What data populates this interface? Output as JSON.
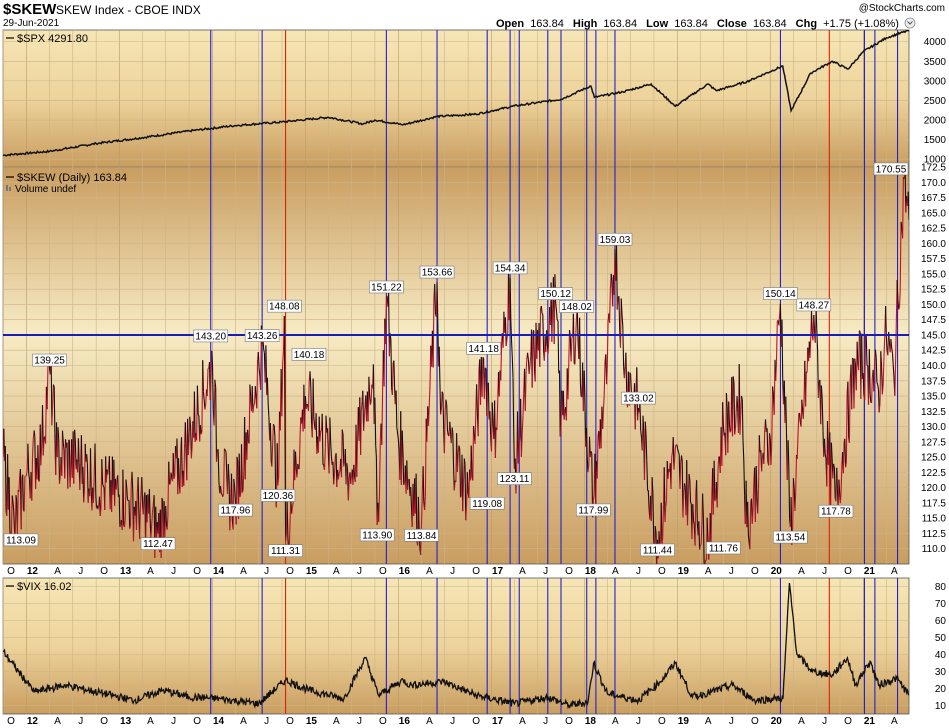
{
  "header": {
    "symbol": "$SKEW",
    "description": "SKEW Index - CBOE INDX",
    "date": "29-Jun-2021",
    "watermark": "@StockCharts.com",
    "open_label": "Open",
    "open": "163.84",
    "high_label": "High",
    "high": "163.84",
    "low_label": "Low",
    "low": "163.84",
    "close_label": "Close",
    "close": "163.84",
    "chg_label": "Chg",
    "chg": "+1.75 (+1.08%)"
  },
  "colors": {
    "panel_top": "#f6e6b6",
    "panel_bottom": "#c99d60",
    "skew_up": "#111111",
    "skew_down": "#c0112b",
    "marker_blue": "#2222cc",
    "marker_red": "#dd2200",
    "hline": "#1b1bb8"
  },
  "chart_data": [
    {
      "type": "line",
      "panel": "top",
      "legend": "$SPX 4291.80",
      "ylim": [
        800,
        4300
      ],
      "yticks": [
        1000,
        1500,
        2000,
        2500,
        3000,
        3500,
        4000
      ],
      "x_range": [
        "2011-10-01",
        "2021-06-29"
      ],
      "x": [
        "2011-10-01",
        "2012-04-01",
        "2012-10-01",
        "2013-04-01",
        "2013-10-01",
        "2014-04-01",
        "2014-10-01",
        "2015-04-01",
        "2015-08-15",
        "2015-10-01",
        "2016-01-20",
        "2016-06-01",
        "2016-11-01",
        "2017-04-01",
        "2017-10-01",
        "2018-01-26",
        "2018-02-09",
        "2018-06-01",
        "2018-09-20",
        "2018-12-24",
        "2019-05-01",
        "2019-06-03",
        "2019-10-01",
        "2020-02-19",
        "2020-03-23",
        "2020-06-08",
        "2020-09-01",
        "2020-11-01",
        "2021-01-01",
        "2021-04-01",
        "2021-06-29"
      ],
      "values": [
        1100,
        1200,
        1400,
        1550,
        1720,
        1860,
        1950,
        2070,
        1900,
        2000,
        1880,
        2090,
        2150,
        2360,
        2530,
        2870,
        2580,
        2720,
        2920,
        2350,
        2920,
        2750,
        2980,
        3380,
        2240,
        3200,
        3500,
        3300,
        3750,
        4100,
        4291.8
      ]
    },
    {
      "type": "line",
      "panel": "middle",
      "legend": "$SKEW (Daily) 163.84",
      "sublegend": "Volume undef",
      "ylim": [
        107.5,
        172.5
      ],
      "yticks": [
        110.0,
        112.5,
        115.0,
        117.5,
        120.0,
        122.5,
        125.0,
        127.5,
        130.0,
        132.5,
        135.0,
        137.5,
        140.0,
        142.5,
        145.0,
        147.5,
        150.0,
        152.5,
        155.0,
        157.5,
        160.0,
        162.5,
        165.0,
        167.5,
        170.0,
        172.5
      ],
      "hline": 145.0,
      "x": [
        "2011-10-01",
        "2011-11-15",
        "2012-01-01",
        "2012-03-01",
        "2012-04-01",
        "2012-05-01",
        "2012-08-01",
        "2012-11-01",
        "2013-02-01",
        "2013-05-01",
        "2013-06-01",
        "2013-07-01",
        "2013-10-01",
        "2014-01-01",
        "2014-01-20",
        "2014-03-01",
        "2014-04-01",
        "2014-07-15",
        "2014-09-15",
        "2014-10-10",
        "2014-10-15",
        "2015-01-01",
        "2015-04-01",
        "2015-07-01",
        "2015-09-25",
        "2015-10-10",
        "2015-11-15",
        "2016-01-01",
        "2016-04-01",
        "2016-06-01",
        "2016-06-15",
        "2016-10-01",
        "2016-12-01",
        "2017-01-10",
        "2017-03-15",
        "2017-04-01",
        "2017-06-01",
        "2017-09-10",
        "2017-10-01",
        "2017-12-01",
        "2018-02-05",
        "2018-04-01",
        "2018-05-01",
        "2018-06-10",
        "2018-08-01",
        "2018-10-15",
        "2018-12-10",
        "2019-02-01",
        "2019-05-01",
        "2019-07-01",
        "2019-09-10",
        "2019-10-01",
        "2019-12-01",
        "2020-01-01",
        "2020-02-10",
        "2020-03-20",
        "2020-05-01",
        "2020-06-20",
        "2020-08-01",
        "2020-09-15",
        "2020-10-20",
        "2020-12-01",
        "2021-01-15",
        "2021-03-01",
        "2021-04-01",
        "2021-05-01",
        "2021-06-10",
        "2021-06-29"
      ],
      "values": [
        125,
        113.09,
        122,
        127,
        139.25,
        125,
        124,
        120,
        118,
        115,
        112.47,
        117,
        128,
        140.2,
        126,
        119,
        117.96,
        143.26,
        120.36,
        148.08,
        111.31,
        135,
        126,
        122,
        140.18,
        113.9,
        151.22,
        128,
        113.84,
        153.66,
        132,
        119.08,
        141.18,
        128,
        154.34,
        123.11,
        140,
        150.12,
        130,
        148.02,
        117.99,
        140,
        159.03,
        140,
        133.02,
        111.44,
        125,
        120,
        111.76,
        130,
        135,
        113.54,
        125,
        128,
        150.14,
        113.54,
        130,
        148.27,
        128,
        117.78,
        128,
        140,
        140,
        136,
        145,
        138,
        170.55,
        163.84
      ],
      "annotations": [
        {
          "x": "2011-11-15",
          "value": 113.09,
          "label": "113.09",
          "pos": "below"
        },
        {
          "x": "2012-04-01",
          "value": 139.25,
          "label": "139.25",
          "pos": "above"
        },
        {
          "x": "2013-06-01",
          "value": 112.47,
          "label": "112.47",
          "pos": "below"
        },
        {
          "x": "2013-12-25",
          "value": 143.2,
          "label": "143.20",
          "pos": "above"
        },
        {
          "x": "2014-04-01",
          "value": 117.96,
          "label": "117.96",
          "pos": "below"
        },
        {
          "x": "2014-07-15",
          "value": 143.26,
          "label": "143.26",
          "pos": "above"
        },
        {
          "x": "2014-09-15",
          "value": 120.36,
          "label": "120.36",
          "pos": "below"
        },
        {
          "x": "2014-10-10",
          "value": 148.08,
          "label": "148.08",
          "pos": "above"
        },
        {
          "x": "2014-10-15",
          "value": 111.31,
          "label": "111.31",
          "pos": "below"
        },
        {
          "x": "2015-01-15",
          "value": 140.18,
          "label": "140.18",
          "pos": "above"
        },
        {
          "x": "2015-10-10",
          "value": 113.9,
          "label": "113.90",
          "pos": "below"
        },
        {
          "x": "2015-11-15",
          "value": 151.22,
          "label": "151.22",
          "pos": "above"
        },
        {
          "x": "2016-04-01",
          "value": 113.84,
          "label": "113.84",
          "pos": "below"
        },
        {
          "x": "2016-06-01",
          "value": 153.66,
          "label": "153.66",
          "pos": "above"
        },
        {
          "x": "2016-12-01",
          "value": 141.18,
          "label": "141.18",
          "pos": "above"
        },
        {
          "x": "2016-12-15",
          "value": 119.08,
          "label": "119.08",
          "pos": "below"
        },
        {
          "x": "2017-03-15",
          "value": 154.34,
          "label": "154.34",
          "pos": "above"
        },
        {
          "x": "2017-04-01",
          "value": 123.11,
          "label": "123.11",
          "pos": "below"
        },
        {
          "x": "2017-09-10",
          "value": 150.12,
          "label": "150.12",
          "pos": "above"
        },
        {
          "x": "2017-12-01",
          "value": 148.02,
          "label": "148.02",
          "pos": "above"
        },
        {
          "x": "2018-02-05",
          "value": 117.99,
          "label": "117.99",
          "pos": "below"
        },
        {
          "x": "2018-05-01",
          "value": 159.03,
          "label": "159.03",
          "pos": "above"
        },
        {
          "x": "2018-08-01",
          "value": 133.02,
          "label": "133.02",
          "pos": "above"
        },
        {
          "x": "2018-10-15",
          "value": 111.44,
          "label": "111.44",
          "pos": "below"
        },
        {
          "x": "2019-07-01",
          "value": 111.76,
          "label": "111.76",
          "pos": "below"
        },
        {
          "x": "2020-02-10",
          "value": 150.14,
          "label": "150.14",
          "pos": "above"
        },
        {
          "x": "2020-03-20",
          "value": 113.54,
          "label": "113.54",
          "pos": "below"
        },
        {
          "x": "2020-06-20",
          "value": 148.27,
          "label": "148.27",
          "pos": "above"
        },
        {
          "x": "2020-09-15",
          "value": 117.78,
          "label": "117.78",
          "pos": "below"
        },
        {
          "x": "2021-06-10",
          "value": 170.55,
          "label": "170.55",
          "pos": "above"
        }
      ]
    },
    {
      "type": "line",
      "panel": "bottom",
      "legend": "$VIX 16.02",
      "ylim": [
        5,
        85
      ],
      "yticks": [
        10,
        20,
        30,
        40,
        50,
        60,
        70,
        80
      ],
      "x": [
        "2011-10-01",
        "2011-11-15",
        "2012-02-01",
        "2012-06-01",
        "2012-11-01",
        "2013-03-01",
        "2013-06-20",
        "2013-10-01",
        "2014-02-01",
        "2014-07-01",
        "2014-10-15",
        "2015-01-15",
        "2015-06-01",
        "2015-08-24",
        "2015-10-15",
        "2016-01-20",
        "2016-02-15",
        "2016-06-27",
        "2016-11-01",
        "2017-04-01",
        "2017-08-11",
        "2017-11-01",
        "2018-01-15",
        "2018-02-06",
        "2018-04-01",
        "2018-08-01",
        "2018-10-25",
        "2018-12-24",
        "2019-03-01",
        "2019-05-15",
        "2019-08-06",
        "2019-11-01",
        "2020-01-20",
        "2020-02-20",
        "2020-03-16",
        "2020-04-15",
        "2020-06-15",
        "2020-09-01",
        "2020-10-30",
        "2020-12-01",
        "2021-01-27",
        "2021-03-01",
        "2021-05-12",
        "2021-06-29"
      ],
      "values": [
        42,
        33,
        18,
        22,
        17,
        13,
        19,
        15,
        14,
        11,
        25,
        19,
        14,
        38,
        16,
        25,
        22,
        24,
        16,
        11,
        15,
        10,
        12,
        35,
        17,
        13,
        24,
        35,
        15,
        18,
        22,
        13,
        14,
        14,
        82,
        40,
        30,
        28,
        38,
        22,
        36,
        22,
        26,
        16.02
      ]
    }
  ],
  "x_axis": {
    "ticks": [
      {
        "date": "2011-10-01",
        "label": "O",
        "bold": false
      },
      {
        "date": "2012-01-01",
        "label": "12",
        "bold": true
      },
      {
        "date": "2012-04-01",
        "label": "A",
        "bold": false
      },
      {
        "date": "2012-07-01",
        "label": "J",
        "bold": false
      },
      {
        "date": "2012-10-01",
        "label": "O",
        "bold": false
      },
      {
        "date": "2013-01-01",
        "label": "13",
        "bold": true
      },
      {
        "date": "2013-04-01",
        "label": "A",
        "bold": false
      },
      {
        "date": "2013-07-01",
        "label": "J",
        "bold": false
      },
      {
        "date": "2013-10-01",
        "label": "O",
        "bold": false
      },
      {
        "date": "2014-01-01",
        "label": "14",
        "bold": true
      },
      {
        "date": "2014-04-01",
        "label": "A",
        "bold": false
      },
      {
        "date": "2014-07-01",
        "label": "J",
        "bold": false
      },
      {
        "date": "2014-10-01",
        "label": "O",
        "bold": false
      },
      {
        "date": "2015-01-01",
        "label": "15",
        "bold": true
      },
      {
        "date": "2015-04-01",
        "label": "A",
        "bold": false
      },
      {
        "date": "2015-07-01",
        "label": "J",
        "bold": false
      },
      {
        "date": "2015-10-01",
        "label": "O",
        "bold": false
      },
      {
        "date": "2016-01-01",
        "label": "16",
        "bold": true
      },
      {
        "date": "2016-04-01",
        "label": "A",
        "bold": false
      },
      {
        "date": "2016-07-01",
        "label": "J",
        "bold": false
      },
      {
        "date": "2016-10-01",
        "label": "O",
        "bold": false
      },
      {
        "date": "2017-01-01",
        "label": "17",
        "bold": true
      },
      {
        "date": "2017-04-01",
        "label": "A",
        "bold": false
      },
      {
        "date": "2017-07-01",
        "label": "J",
        "bold": false
      },
      {
        "date": "2017-10-01",
        "label": "O",
        "bold": false
      },
      {
        "date": "2018-01-01",
        "label": "18",
        "bold": true
      },
      {
        "date": "2018-04-01",
        "label": "A",
        "bold": false
      },
      {
        "date": "2018-07-01",
        "label": "J",
        "bold": false
      },
      {
        "date": "2018-10-01",
        "label": "O",
        "bold": false
      },
      {
        "date": "2019-01-01",
        "label": "19",
        "bold": true
      },
      {
        "date": "2019-04-01",
        "label": "A",
        "bold": false
      },
      {
        "date": "2019-07-01",
        "label": "J",
        "bold": false
      },
      {
        "date": "2019-10-01",
        "label": "O",
        "bold": false
      },
      {
        "date": "2020-01-01",
        "label": "20",
        "bold": true
      },
      {
        "date": "2020-04-01",
        "label": "A",
        "bold": false
      },
      {
        "date": "2020-07-01",
        "label": "J",
        "bold": false
      },
      {
        "date": "2020-10-01",
        "label": "O",
        "bold": false
      },
      {
        "date": "2021-01-01",
        "label": "21",
        "bold": true
      },
      {
        "date": "2021-04-01",
        "label": "A",
        "bold": false
      }
    ]
  },
  "markers": [
    {
      "date": "2013-12-25",
      "color": "blue"
    },
    {
      "date": "2014-07-15",
      "color": "blue"
    },
    {
      "date": "2014-10-15",
      "color": "red"
    },
    {
      "date": "2015-11-15",
      "color": "blue"
    },
    {
      "date": "2016-06-01",
      "color": "blue"
    },
    {
      "date": "2016-12-15",
      "color": "blue"
    },
    {
      "date": "2017-03-15",
      "color": "blue"
    },
    {
      "date": "2017-04-20",
      "color": "blue"
    },
    {
      "date": "2017-08-10",
      "color": "blue"
    },
    {
      "date": "2017-10-01",
      "color": "blue"
    },
    {
      "date": "2018-01-10",
      "color": "blue"
    },
    {
      "date": "2018-02-15",
      "color": "blue"
    },
    {
      "date": "2018-05-01",
      "color": "blue"
    },
    {
      "date": "2020-02-10",
      "color": "blue"
    },
    {
      "date": "2020-08-20",
      "color": "red"
    },
    {
      "date": "2021-01-05",
      "color": "blue"
    },
    {
      "date": "2021-02-15",
      "color": "blue"
    },
    {
      "date": "2021-05-15",
      "color": "blue"
    }
  ]
}
